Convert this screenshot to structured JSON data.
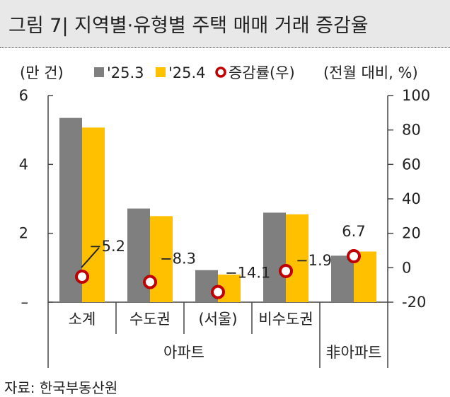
{
  "header": {
    "title": "그림 7| 지역별·유형별 주택 매매 거래 증감율"
  },
  "source": "자료: 한국부동산원",
  "chart_data": {
    "type": "bar",
    "left_unit": "(만 건)",
    "right_unit": "(전월 대비, %)",
    "categories": [
      "소계",
      "수도권",
      "(서울)",
      "비수도권",
      "非아파트"
    ],
    "groups": [
      {
        "label": "아파트",
        "span": [
          0,
          3
        ]
      },
      {
        "label": "非아파트",
        "span": [
          4,
          4
        ]
      }
    ],
    "series": [
      {
        "name": "'25.3",
        "color": "#7f7f7f",
        "axis": "left",
        "values": [
          5.35,
          2.72,
          0.93,
          2.6,
          1.35
        ]
      },
      {
        "name": "'25.4",
        "color": "#ffc000",
        "axis": "left",
        "values": [
          5.07,
          2.5,
          0.8,
          2.55,
          1.47
        ]
      },
      {
        "name": "증감률(우)",
        "color": "#c00000",
        "axis": "right",
        "type": "scatter",
        "values": [
          -5.2,
          -8.3,
          -14.1,
          -1.9,
          6.7
        ]
      }
    ],
    "data_labels": [
      "−5.2",
      "−8.3",
      "−14.1",
      "−1.9",
      "6.7"
    ],
    "left_ticks": [
      "6",
      "4",
      "2",
      "–"
    ],
    "left_tick_values": [
      6,
      4,
      2,
      0
    ],
    "right_ticks": [
      "100",
      "80",
      "60",
      "40",
      "20",
      "0",
      "-20"
    ],
    "right_tick_values": [
      100,
      80,
      60,
      40,
      20,
      0,
      -20
    ],
    "ylim_left": [
      0,
      6
    ],
    "ylim_right": [
      -20,
      100
    ],
    "legend_position": "top",
    "grid": false
  }
}
